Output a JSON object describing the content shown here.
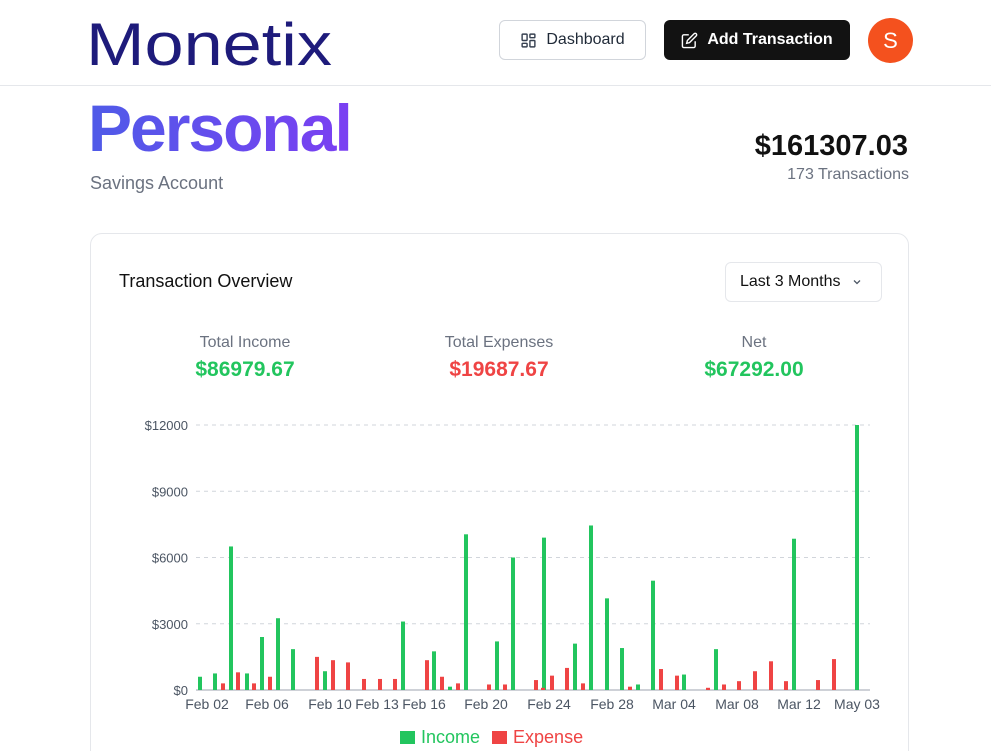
{
  "brand": {
    "name": "Monetix"
  },
  "header": {
    "dashboard_label": "Dashboard",
    "add_transaction_label": "Add Transaction",
    "avatar_initial": "S"
  },
  "account": {
    "name": "Personal",
    "type": "Savings Account",
    "balance": "$161307.03",
    "transactions": "173 Transactions"
  },
  "overview": {
    "title": "Transaction Overview",
    "range_selected": "Last 3 Months",
    "stats": {
      "income_label": "Total Income",
      "income_value": "$86979.67",
      "expense_label": "Total Expenses",
      "expense_value": "$19687.67",
      "net_label": "Net",
      "net_value": "$67292.00"
    }
  },
  "colors": {
    "income": "#22c55e",
    "expense": "#ef4444",
    "accent": "#121212",
    "avatar": "#f4511e"
  },
  "chart_data": {
    "type": "bar",
    "ylim": [
      0,
      12000
    ],
    "y_ticks": [
      "$0",
      "$3000",
      "$6000",
      "$9000",
      "$12000"
    ],
    "x_ticks": [
      "Feb 02",
      "Feb 06",
      "Feb 10",
      "Feb 13",
      "Feb 16",
      "Feb 20",
      "Feb 24",
      "Feb 28",
      "Mar 04",
      "Mar 08",
      "Mar 12",
      "May 03"
    ],
    "legend": [
      "Income",
      "Expense"
    ],
    "grid": true,
    "series": [
      {
        "name": "Income",
        "color": "#22c55e",
        "points": [
          [
            0,
            600
          ],
          [
            1,
            750
          ],
          [
            2,
            6500
          ],
          [
            3,
            750
          ],
          [
            4,
            2400
          ],
          [
            5,
            3250
          ],
          [
            6,
            1850
          ],
          [
            7,
            850
          ],
          [
            8,
            3100
          ],
          [
            9,
            1750
          ],
          [
            10,
            150
          ],
          [
            11,
            7050
          ],
          [
            12,
            2200
          ],
          [
            13,
            6000
          ],
          [
            14,
            6900
          ],
          [
            15,
            2100
          ],
          [
            16,
            7450
          ],
          [
            17,
            4150
          ],
          [
            18,
            1900
          ],
          [
            19,
            250
          ],
          [
            20,
            4950
          ],
          [
            21,
            700
          ],
          [
            22,
            1850
          ],
          [
            23,
            6850
          ],
          [
            24,
            12000
          ]
        ]
      },
      {
        "name": "Expense",
        "color": "#ef4444",
        "points": [
          [
            0,
            300
          ],
          [
            1,
            800
          ],
          [
            2,
            300
          ],
          [
            3,
            600
          ],
          [
            4,
            1500
          ],
          [
            5,
            1350
          ],
          [
            6,
            1250
          ],
          [
            7,
            500
          ],
          [
            8,
            500
          ],
          [
            9,
            500
          ],
          [
            10,
            1350
          ],
          [
            11,
            600
          ],
          [
            12,
            300
          ],
          [
            13,
            250
          ],
          [
            14,
            250
          ],
          [
            15,
            450
          ],
          [
            16,
            100
          ],
          [
            17,
            650
          ],
          [
            18,
            1000
          ],
          [
            19,
            300
          ],
          [
            20,
            150
          ],
          [
            21,
            950
          ],
          [
            22,
            650
          ],
          [
            23,
            100
          ],
          [
            24,
            250
          ],
          [
            25,
            400
          ],
          [
            26,
            850
          ],
          [
            27,
            1300
          ],
          [
            28,
            400
          ],
          [
            29,
            450
          ],
          [
            30,
            1400
          ]
        ]
      }
    ]
  }
}
